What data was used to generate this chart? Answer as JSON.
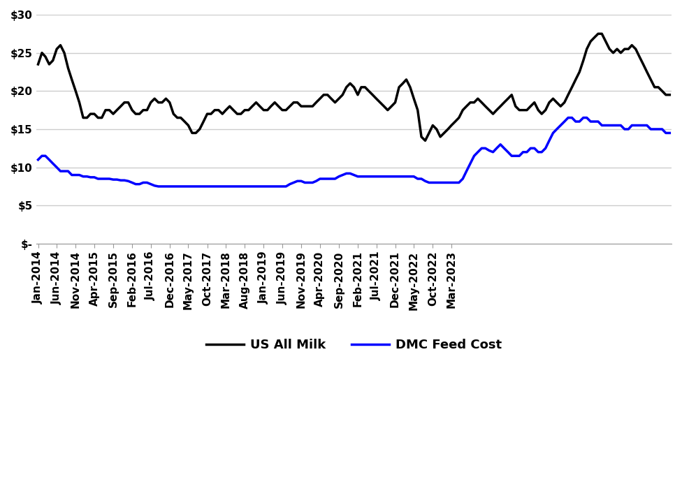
{
  "title": "",
  "milk_prices": [
    23.5,
    25.0,
    24.5,
    23.5,
    24.0,
    25.5,
    26.0,
    25.0,
    23.0,
    21.5,
    20.0,
    18.5,
    16.5,
    16.5,
    17.0,
    17.0,
    16.5,
    16.5,
    17.5,
    17.5,
    17.0,
    17.5,
    18.0,
    18.5,
    18.5,
    17.5,
    17.0,
    17.0,
    17.5,
    17.5,
    18.5,
    19.0,
    18.5,
    18.5,
    19.0,
    18.5,
    17.0,
    16.5,
    16.5,
    16.0,
    15.5,
    14.5,
    14.5,
    15.0,
    16.0,
    17.0,
    17.0,
    17.5,
    17.5,
    17.0,
    17.5,
    18.0,
    17.5,
    17.0,
    17.0,
    17.5,
    17.5,
    18.0,
    18.5,
    18.0,
    17.5,
    17.5,
    18.0,
    18.5,
    18.0,
    17.5,
    17.5,
    18.0,
    18.5,
    18.5,
    18.0,
    18.0,
    18.0,
    18.0,
    18.5,
    19.0,
    19.5,
    19.5,
    19.0,
    18.5,
    19.0,
    19.5,
    20.5,
    21.0,
    20.5,
    19.5,
    20.5,
    20.5,
    20.0,
    19.5,
    19.0,
    18.5,
    18.0,
    17.5,
    18.0,
    18.5,
    20.5,
    21.0,
    21.5,
    20.5,
    19.0,
    17.5,
    14.0,
    13.5,
    14.5,
    15.5,
    15.0,
    14.0,
    14.5,
    15.0,
    15.5,
    16.0,
    16.5,
    17.5,
    18.0,
    18.5,
    18.5,
    19.0,
    18.5,
    18.0,
    17.5,
    17.0,
    17.5,
    18.0,
    18.5,
    19.0,
    19.5,
    18.0,
    17.5,
    17.5,
    17.5,
    18.0,
    18.5,
    17.5,
    17.0,
    17.5,
    18.5,
    19.0,
    18.5,
    18.0,
    18.5,
    19.5,
    20.5,
    21.5,
    22.5,
    24.0,
    25.5,
    26.5,
    27.0,
    27.5,
    27.5,
    26.5,
    25.5,
    25.0,
    25.5,
    25.0,
    25.5,
    25.5,
    26.0,
    25.5,
    24.5,
    23.5,
    22.5,
    21.5,
    20.5,
    20.5,
    20.0,
    19.5,
    19.5
  ],
  "dmc_prices": [
    11.0,
    11.5,
    11.5,
    11.0,
    10.5,
    10.0,
    9.5,
    9.5,
    9.5,
    9.0,
    9.0,
    9.0,
    8.8,
    8.8,
    8.7,
    8.7,
    8.5,
    8.5,
    8.5,
    8.5,
    8.4,
    8.4,
    8.3,
    8.3,
    8.2,
    8.0,
    7.8,
    7.8,
    8.0,
    8.0,
    7.8,
    7.6,
    7.5,
    7.5,
    7.5,
    7.5,
    7.5,
    7.5,
    7.5,
    7.5,
    7.5,
    7.5,
    7.5,
    7.5,
    7.5,
    7.5,
    7.5,
    7.5,
    7.5,
    7.5,
    7.5,
    7.5,
    7.5,
    7.5,
    7.5,
    7.5,
    7.5,
    7.5,
    7.5,
    7.5,
    7.5,
    7.5,
    7.5,
    7.5,
    7.5,
    7.5,
    7.5,
    7.8,
    8.0,
    8.2,
    8.2,
    8.0,
    8.0,
    8.0,
    8.2,
    8.5,
    8.5,
    8.5,
    8.5,
    8.5,
    8.8,
    9.0,
    9.2,
    9.2,
    9.0,
    8.8,
    8.8,
    8.8,
    8.8,
    8.8,
    8.8,
    8.8,
    8.8,
    8.8,
    8.8,
    8.8,
    8.8,
    8.8,
    8.8,
    8.8,
    8.8,
    8.5,
    8.5,
    8.2,
    8.0,
    8.0,
    8.0,
    8.0,
    8.0,
    8.0,
    8.0,
    8.0,
    8.0,
    8.5,
    9.5,
    10.5,
    11.5,
    12.0,
    12.5,
    12.5,
    12.2,
    12.0,
    12.5,
    13.0,
    12.5,
    12.0,
    11.5,
    11.5,
    11.5,
    12.0,
    12.0,
    12.5,
    12.5,
    12.0,
    12.0,
    12.5,
    13.5,
    14.5,
    15.0,
    15.5,
    16.0,
    16.5,
    16.5,
    16.0,
    16.0,
    16.5,
    16.5,
    16.0,
    16.0,
    16.0,
    15.5,
    15.5,
    15.5,
    15.5,
    15.5,
    15.5,
    15.0,
    15.0,
    15.5,
    15.5,
    15.5,
    15.5,
    15.5,
    15.0,
    15.0,
    15.0,
    15.0,
    14.5,
    14.5
  ],
  "milk_color": "#000000",
  "dmc_color": "#0000FF",
  "line_width": 2.5,
  "ylabel_fontsize": 14,
  "tick_fontsize": 11,
  "legend_fontsize": 13,
  "grid_color": "#cccccc",
  "background_color": "#ffffff",
  "ylim": [
    0,
    30
  ],
  "yticks": [
    0,
    5,
    10,
    15,
    20,
    25,
    30
  ],
  "ytick_labels": [
    "$-",
    "$5",
    "$10",
    "$15",
    "$20",
    "$25",
    "$30"
  ],
  "x_tick_labels": [
    "Jan-2014",
    "Jun-2014",
    "Nov-2014",
    "Apr-2015",
    "Sep-2015",
    "Feb-2016",
    "Jul-2016",
    "Dec-2016",
    "May-2017",
    "Oct-2017",
    "Mar-2018",
    "Aug-2018",
    "Jan-2019",
    "Jun-2019",
    "Nov-2019",
    "Apr-2020",
    "Sep-2020",
    "Feb-2021",
    "Jul-2021",
    "Dec-2021",
    "May-2022",
    "Oct-2022",
    "Mar-2023"
  ],
  "legend_labels": [
    "US All Milk",
    "DMC Feed Cost"
  ]
}
